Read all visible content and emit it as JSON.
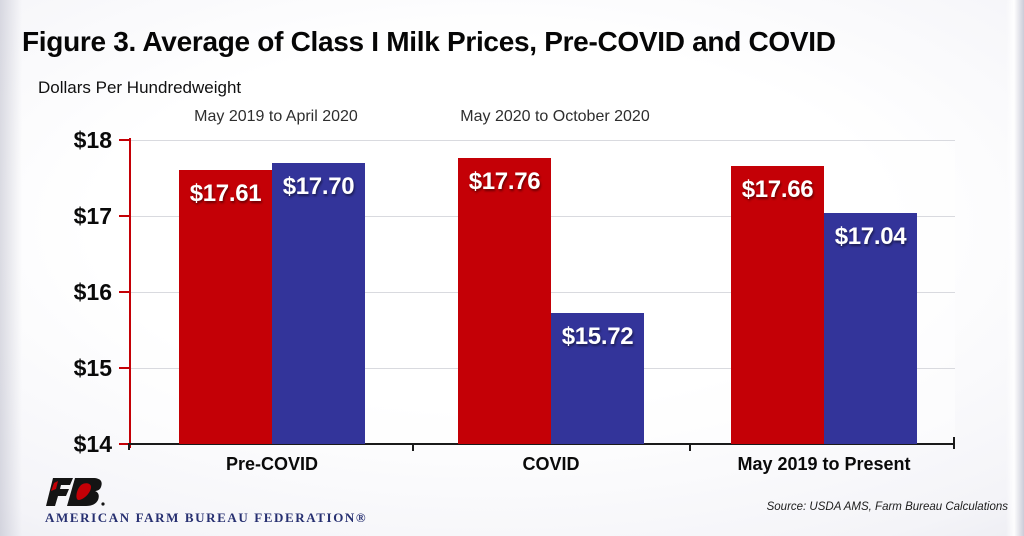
{
  "page": {
    "title": "Figure 3. Average of Class I Milk Prices, Pre-COVID and COVID",
    "units_label": "Dollars Per Hundredweight",
    "source": "Source: USDA AMS, Farm Bureau Calculations",
    "logo_text": "AMERICAN FARM BUREAU FEDERATION®"
  },
  "chart_data": {
    "type": "bar",
    "title": "Figure 3. Average of Class I Milk Prices, Pre-COVID and COVID",
    "ylabel": "Dollars Per Hundredweight",
    "categories": [
      "Pre-COVID",
      "COVID",
      "May 2019 to Present"
    ],
    "series": [
      {
        "name": "red-series",
        "color": "#c40006",
        "values": [
          17.61,
          17.76,
          17.66
        ]
      },
      {
        "name": "blue-series",
        "color": "#33349a",
        "values": [
          17.7,
          15.72,
          17.04
        ]
      }
    ],
    "annotations": [
      {
        "category_index": 0,
        "text": "May 2019 to April 2020"
      },
      {
        "category_index": 1,
        "text": "May 2020 to October 2020"
      }
    ],
    "ylim": [
      14,
      18
    ],
    "yticks": [
      "$14",
      "$15",
      "$16",
      "$17",
      "$18"
    ],
    "grid": true,
    "legend": "none",
    "value_label_prefix": "$",
    "axis_colors": {
      "y_axis": "#c40006",
      "x_axis": "#1a1a1a",
      "gridline": "#d9dadf"
    }
  }
}
